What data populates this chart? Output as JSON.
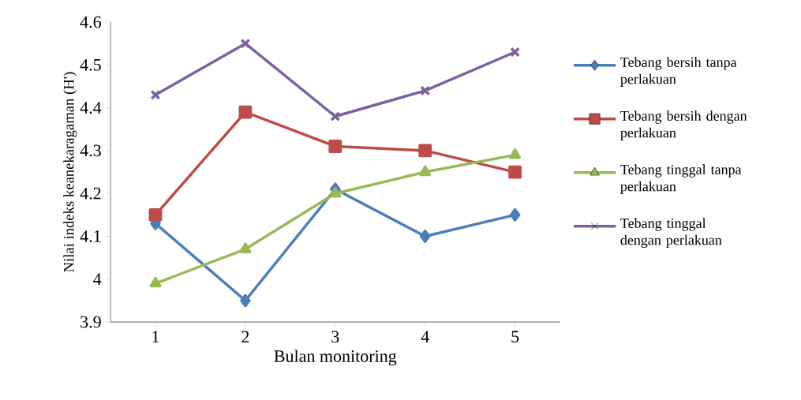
{
  "chart_data": {
    "type": "line",
    "xlabel": "Bulan monitoring",
    "ylabel": "Nilai indeks keanekaragaman (H')",
    "categories": [
      "1",
      "2",
      "3",
      "4",
      "5"
    ],
    "series": [
      {
        "name": "Tebang bersih tanpa perlakuan",
        "color": "#4a7ebb",
        "marker": "diamond",
        "values": [
          4.13,
          3.95,
          4.21,
          4.1,
          4.15
        ]
      },
      {
        "name": "Tebang bersih dengan perlakuan",
        "color": "#be4b48",
        "marker": "square",
        "values": [
          4.15,
          4.39,
          4.31,
          4.3,
          4.25
        ]
      },
      {
        "name": "Tebang tinggal tanpa perlakuan",
        "color": "#98b954",
        "marker": "triangle",
        "values": [
          3.99,
          4.07,
          4.2,
          4.25,
          4.29
        ]
      },
      {
        "name": "Tebang tinggal dengan perlakuan",
        "color": "#7d60a0",
        "marker": "cross",
        "values": [
          4.43,
          4.55,
          4.38,
          4.44,
          4.53
        ]
      }
    ],
    "ylim": [
      3.9,
      4.6
    ],
    "yticks": [
      3.9,
      4,
      4.1,
      4.2,
      4.3,
      4.4,
      4.5,
      4.6
    ],
    "grid": false,
    "legend": "right",
    "line_style": "solid"
  }
}
